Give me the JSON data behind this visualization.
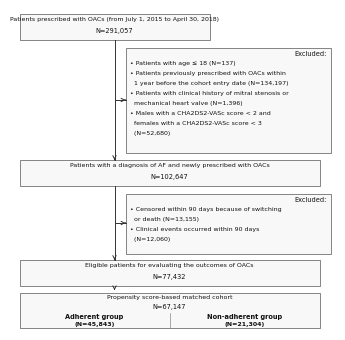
{
  "bg_color": "#ffffff",
  "text_color": "#111111",
  "arrow_color": "#333333",
  "box_edge_color": "#555555",
  "box_face_color": "#f8f8f8",
  "top_box": {
    "text1": "Patients prescribed with OACs (from July 1, 2015 to April 30, 2018)",
    "text2": "N=291,057"
  },
  "excl1_lines": [
    "Excluded:",
    "• Patients with age ≤ 18 (N=137)",
    "• Patients previously prescribed with OACs within",
    "  1 year before the cohort entry date (N=134,197)",
    "• Patients with clinical history of mitral stenosis or",
    "  mechanical heart valve (N=1,396)",
    "• Males with a CHA2DS2-VASc score < 2 and",
    "  females with a CHA2DS2-VASc score < 3",
    "  (N=52,680)"
  ],
  "box2": {
    "text1": "Patients with a diagnosis of AF and newly prescribed with OACs",
    "text2": "N=102,647"
  },
  "excl2_lines": [
    "Excluded:",
    "• Censored within 90 days because of switching",
    "  or death (N=13,155)",
    "• Clinical events occurred within 90 days",
    "  (N=12,060)"
  ],
  "box3": {
    "text1": "Eligible patients for evaluating the outcomes of OACs",
    "text2": "N=77,432"
  },
  "box4": {
    "text1": "Propensity score-based matched cohort",
    "text2": "N=67,147",
    "left_label": "Adherent group",
    "left_n": "(N=45,843)",
    "right_label": "Non-adherent group",
    "right_n": "(N=21,304)"
  }
}
